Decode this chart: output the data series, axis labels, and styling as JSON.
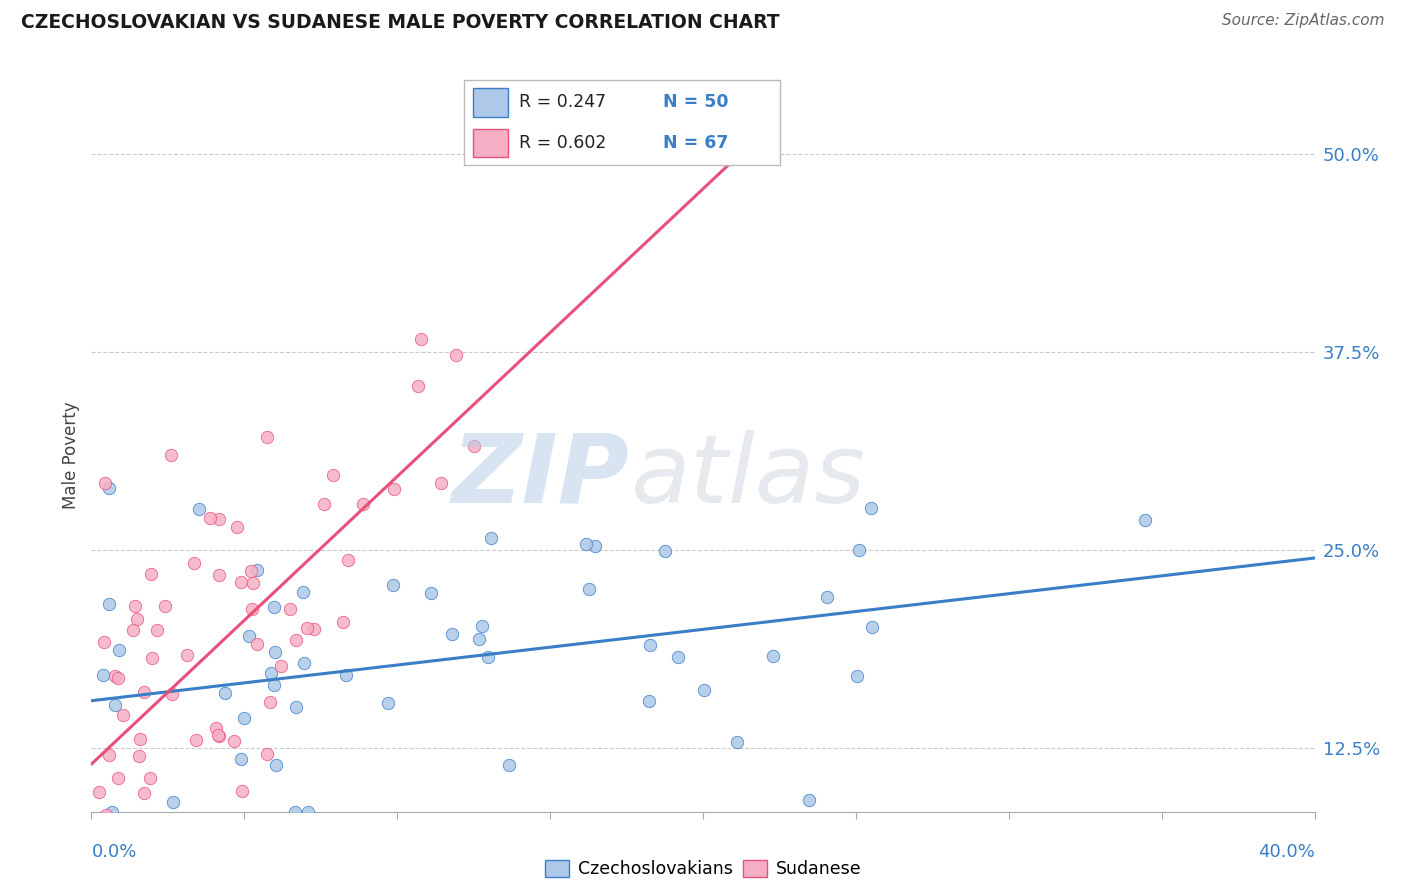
{
  "title": "CZECHOSLOVAKIAN VS SUDANESE MALE POVERTY CORRELATION CHART",
  "source": "Source: ZipAtlas.com",
  "ylabel": "Male Poverty",
  "legend_labels": [
    "Czechoslovakians",
    "Sudanese"
  ],
  "blue_R": 0.247,
  "blue_N": 50,
  "pink_R": 0.602,
  "pink_N": 67,
  "blue_scatter_color": "#adc8e8",
  "pink_scatter_color": "#f5afc5",
  "blue_line_color": "#3a7ec8",
  "pink_line_color": "#e8507a",
  "tick_label_color": "#3a7ec8",
  "grid_color": "#cccccc",
  "background_color": "#ffffff",
  "xlim": [
    0.0,
    0.4
  ],
  "ylim": [
    0.085,
    0.535
  ],
  "yticks": [
    0.125,
    0.25,
    0.375,
    0.5
  ],
  "ytick_labels": [
    "12.5%",
    "25.0%",
    "37.5%",
    "50.0%"
  ],
  "blue_line_x0": 0.0,
  "blue_line_y0": 0.155,
  "blue_line_x1": 0.4,
  "blue_line_y1": 0.245,
  "pink_line_x0": 0.0,
  "pink_line_y0": 0.115,
  "pink_line_x1": 0.215,
  "pink_line_y1": 0.505
}
